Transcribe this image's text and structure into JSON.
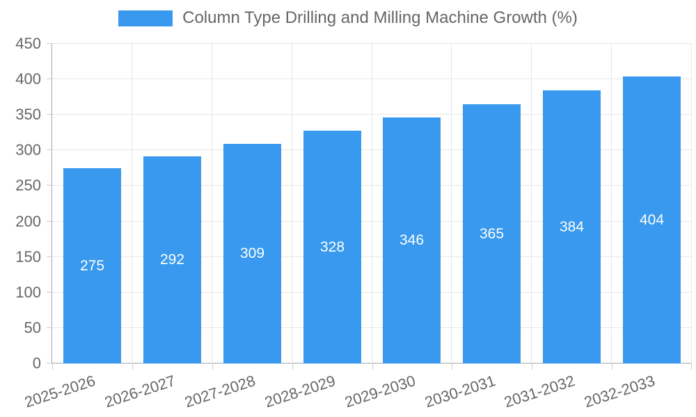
{
  "chart_data": {
    "type": "bar",
    "title": "Column Type Drilling and Milling Machine Growth (%)",
    "legend_position": "top",
    "categories": [
      "2025-2026",
      "2026-2027",
      "2027-2028",
      "2028-2029",
      "2029-2030",
      "2030-2031",
      "2031-2032",
      "2032-2033"
    ],
    "values": [
      275,
      292,
      309,
      328,
      346,
      365,
      384,
      404
    ],
    "value_labels": [
      "275",
      "292",
      "309",
      "328",
      "346",
      "365",
      "384",
      "404"
    ],
    "xlabel": "",
    "ylabel": "",
    "ylim": [
      0,
      450
    ],
    "yticks": [
      0,
      50,
      100,
      150,
      200,
      250,
      300,
      350,
      400,
      450
    ],
    "grid": true,
    "x_label_rotation_deg": -18,
    "colors": {
      "bar": "#3899EE",
      "bar_value_text": "#ffffff",
      "axis_text": "#666666",
      "grid_line": "#e6e6e6",
      "axis_line": "#a6a6a6",
      "tick_mark": "#c9c9c9",
      "background": "#ffffff"
    }
  }
}
